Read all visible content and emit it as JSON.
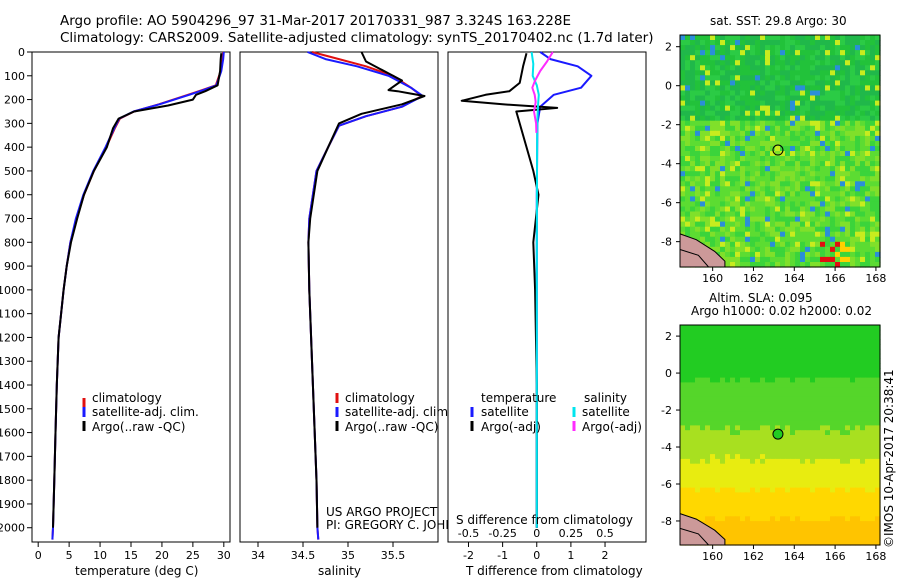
{
  "header": {
    "line1": "Argo profile: AO 5904296_97 31-Mar-2017 20170331_987 3.324S 163.228E",
    "line2": "Climatology: CARS2009. Satellite-adjusted climatology: synTS_20170402.nc (1.7d later)"
  },
  "credits": {
    "project": "US ARGO PROJECT",
    "pi": "PI: GREGORY C. JOHNSON",
    "imos": "©IMOS 10-Apr-2017 20:38:41"
  },
  "colors": {
    "climatology": "#e01010",
    "satellite": "#1a1aff",
    "argo": "#000000",
    "sal_satellite": "#00e5ee",
    "sal_argo": "#ff2bff",
    "ocean_green": "#22cc22",
    "land": "#cc9999"
  },
  "chart_data": [
    {
      "type": "line",
      "panel": "temperature",
      "xlabel": "temperature (deg C)",
      "ylabel": "",
      "xlim": [
        -1,
        31
      ],
      "ylim": [
        2060,
        0
      ],
      "xticks": [
        0,
        5,
        10,
        15,
        20,
        25,
        30
      ],
      "yticks": [
        0,
        100,
        200,
        300,
        400,
        500,
        600,
        700,
        800,
        900,
        1000,
        1100,
        1200,
        1300,
        1400,
        1500,
        1600,
        1700,
        1800,
        1900,
        2000
      ],
      "legend": [
        "climatology",
        "satellite-adj. clim.",
        "Argo(..raw -QC)"
      ],
      "legend_position": "lower-middle",
      "series": [
        {
          "name": "climatology",
          "x": [
            29.9,
            29.8,
            29.5,
            28.7,
            26.5,
            24.2,
            19.5,
            15.5,
            13.2,
            12.4,
            11.0,
            9.0,
            7.4,
            6.2,
            5.2,
            4.6,
            4.1,
            3.7,
            3.3,
            3.0,
            2.8,
            2.6,
            2.4,
            2.3
          ],
          "y": [
            0,
            30,
            80,
            140,
            160,
            180,
            220,
            250,
            280,
            320,
            400,
            500,
            600,
            700,
            800,
            900,
            1000,
            1100,
            1200,
            1400,
            1600,
            1800,
            2000,
            2050
          ]
        },
        {
          "name": "satellite-adj. clim.",
          "x": [
            30.0,
            29.9,
            29.6,
            28.8,
            26.7,
            24.4,
            19.6,
            15.4,
            13.1,
            12.3,
            10.9,
            8.9,
            7.3,
            6.1,
            5.2,
            4.6,
            4.1,
            3.7,
            3.3,
            3.0,
            2.8,
            2.6,
            2.4,
            2.3
          ],
          "y": [
            0,
            30,
            80,
            140,
            160,
            180,
            220,
            250,
            280,
            320,
            400,
            500,
            600,
            700,
            800,
            900,
            1000,
            1100,
            1200,
            1400,
            1600,
            1800,
            2000,
            2050
          ]
        },
        {
          "name": "Argo(..raw -QC)",
          "x": [
            29.6,
            29.5,
            29.4,
            29.0,
            27.0,
            25.5,
            25.0,
            21.0,
            15.5,
            13.0,
            12.1,
            11.1,
            9.0,
            7.4,
            6.3,
            5.3,
            4.6,
            4.1,
            3.7,
            3.3,
            3.0,
            2.8,
            2.6,
            2.4
          ],
          "y": [
            5,
            30,
            80,
            140,
            165,
            180,
            200,
            225,
            250,
            280,
            320,
            400,
            500,
            600,
            700,
            800,
            900,
            1000,
            1100,
            1200,
            1400,
            1600,
            1800,
            2000
          ]
        }
      ]
    },
    {
      "type": "line",
      "panel": "salinity",
      "xlabel": "salinity",
      "ylabel": "",
      "xlim": [
        33.8,
        36.0
      ],
      "ylim": [
        2060,
        0
      ],
      "xticks": [
        34,
        34.5,
        35,
        35.5
      ],
      "legend": [
        "climatology",
        "satellite-adj. clim.",
        "Argo(..raw -QC)"
      ],
      "legend_position": "lower-middle",
      "series": [
        {
          "name": "climatology",
          "x": [
            34.6,
            34.9,
            35.2,
            35.5,
            35.7,
            35.82,
            35.6,
            35.2,
            34.9,
            34.78,
            34.65,
            34.57,
            34.56,
            34.57,
            34.59,
            34.61,
            34.63,
            34.65,
            34.66,
            34.67
          ],
          "y": [
            0,
            30,
            60,
            100,
            150,
            185,
            230,
            270,
            310,
            400,
            500,
            700,
            800,
            1000,
            1200,
            1400,
            1600,
            1800,
            2000,
            2050
          ]
        },
        {
          "name": "satellite-adj. clim.",
          "x": [
            34.55,
            34.75,
            35.1,
            35.45,
            35.7,
            35.83,
            35.6,
            35.2,
            34.9,
            34.78,
            34.65,
            34.57,
            34.56,
            34.57,
            34.59,
            34.61,
            34.63,
            34.65,
            34.66,
            34.67
          ],
          "y": [
            0,
            30,
            60,
            100,
            150,
            185,
            230,
            270,
            310,
            400,
            500,
            700,
            800,
            1000,
            1200,
            1400,
            1600,
            1800,
            2000,
            2050
          ]
        },
        {
          "name": "Argo(..raw -QC)",
          "x": [
            35.15,
            35.2,
            35.45,
            35.6,
            35.45,
            35.55,
            35.7,
            35.85,
            35.6,
            35.15,
            34.9,
            34.78,
            34.66,
            34.58,
            34.56,
            34.57,
            34.59,
            34.61,
            34.63,
            34.65,
            34.66
          ],
          "y": [
            0,
            40,
            90,
            120,
            160,
            165,
            175,
            185,
            220,
            260,
            300,
            400,
            500,
            700,
            800,
            1000,
            1200,
            1400,
            1600,
            1800,
            2000
          ]
        }
      ]
    },
    {
      "type": "line",
      "panel": "difference",
      "xlabel": "T difference from climatology",
      "xlabel_top": "S difference from climatology",
      "ylabel": "",
      "xlim": [
        -2.6,
        3.2
      ],
      "ylim": [
        2060,
        0
      ],
      "xticks": [
        -2,
        -1,
        0,
        1,
        2
      ],
      "sticks": [
        -0.5,
        -0.25,
        0,
        0.25,
        0.5
      ],
      "legend": [
        "temperature",
        "satellite",
        "Argo(-adj)",
        "salinity",
        "satellite",
        "Argo(-adj)"
      ],
      "legend_position": "lower-middle",
      "series": [
        {
          "name": "T satellite",
          "x": [
            0.1,
            0.4,
            1.2,
            1.6,
            1.3,
            0.5,
            0.1,
            0.02,
            0,
            0,
            0,
            0
          ],
          "y": [
            0,
            30,
            60,
            100,
            150,
            180,
            230,
            300,
            600,
            1200,
            1700,
            2000
          ]
        },
        {
          "name": "T Argo(-adj)",
          "x": [
            -0.3,
            -0.4,
            -0.5,
            -0.8,
            -1.5,
            -2.2,
            -1.0,
            0.6,
            -0.6,
            -0.5,
            -0.3,
            -0.1,
            0.05,
            -0.1,
            -0.05,
            0.0,
            0.0,
            0.0
          ],
          "y": [
            5,
            60,
            130,
            165,
            180,
            205,
            220,
            235,
            250,
            300,
            400,
            500,
            600,
            800,
            1000,
            1400,
            1800,
            2000
          ]
        },
        {
          "name": "S satellite",
          "x": [
            -0.15,
            -0.1,
            -0.12,
            0.0,
            0.06,
            0.04,
            0.02,
            0.01,
            0.0,
            0.0,
            0.0
          ],
          "y": [
            0,
            50,
            100,
            140,
            180,
            220,
            280,
            400,
            800,
            1400,
            2000
          ]
        },
        {
          "name": "S Argo(-adj)",
          "x": [
            0.47,
            0.3,
            0.1,
            -0.05,
            -0.13,
            -0.06,
            -0.03,
            -0.08,
            -0.02,
            -0.01
          ],
          "y": [
            0,
            40,
            80,
            120,
            150,
            180,
            210,
            250,
            300,
            340
          ]
        }
      ]
    }
  ],
  "maps": [
    {
      "title": "sat. SST: 29.8 Argo: 30",
      "xticks": [
        "160",
        "162",
        "164",
        "166",
        "168"
      ],
      "yticks": [
        "2",
        "0",
        "-2",
        "-4",
        "-6",
        "-8"
      ],
      "marker": {
        "lon": 163.2,
        "lat": -3.3
      }
    },
    {
      "title_line1": "Altim. SLA: 0.095",
      "title_line2": "Argo h1000: 0.02 h2000: 0.02",
      "xticks": [
        "160",
        "162",
        "164",
        "166",
        "168"
      ],
      "yticks": [
        "2",
        "0",
        "-2",
        "-4",
        "-6",
        "-8"
      ],
      "marker": {
        "lon": 163.2,
        "lat": -3.3
      }
    }
  ]
}
